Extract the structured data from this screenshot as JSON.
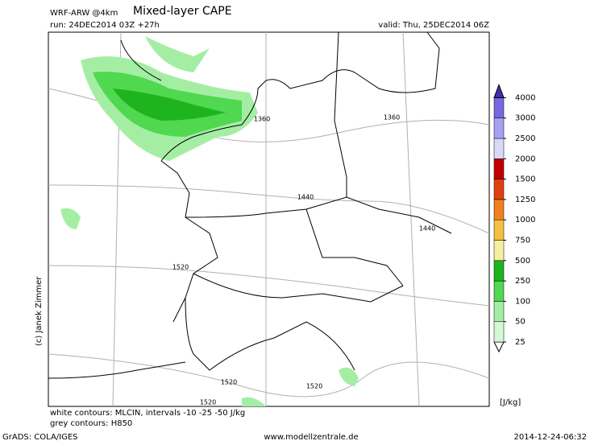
{
  "header": {
    "model": "WRF-ARW @4km",
    "title": "Mixed-layer CAPE",
    "run": "run: 24DEC2014 03Z +27h",
    "valid": "valid: Thu, 25DEC2014 06Z"
  },
  "colorbar": {
    "levels": [
      25,
      50,
      100,
      250,
      500,
      750,
      1000,
      1250,
      1500,
      2000,
      2500,
      3000,
      4000
    ],
    "colors": [
      "#ffffff",
      "#d4f7d4",
      "#a4eea4",
      "#50d850",
      "#1eb41e",
      "#f5f0a0",
      "#f5c040",
      "#f08020",
      "#e04010",
      "#c00000",
      "#d8d8f8",
      "#a8a0f0",
      "#7868e0",
      "#4030b0"
    ],
    "unit": "[J/kg]"
  },
  "contour_labels": [
    "1360",
    "1360",
    "1440",
    "1440",
    "1520",
    "1520",
    "1520",
    "1520"
  ],
  "copyright": "(c) Janek Zimmer",
  "legend": {
    "white": "white contours: MLCIN, intervals -10 -25 -50 J/kg",
    "grey": "grey contours: H850"
  },
  "footer": {
    "software": "GrADS: COLA/IGES",
    "site": "www.modellzentrale.de",
    "timestamp": "2014-12-24-06:32"
  }
}
